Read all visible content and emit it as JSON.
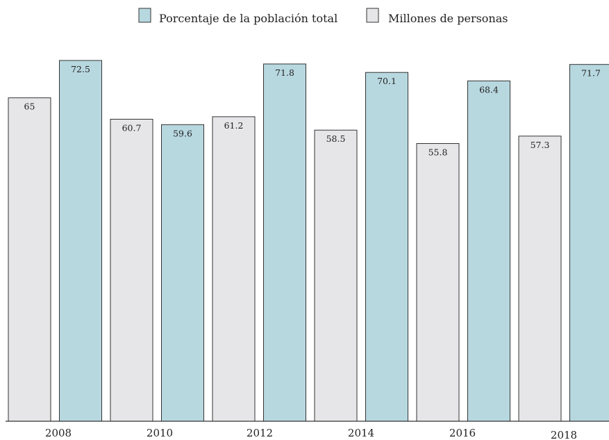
{
  "chart_data": {
    "type": "bar",
    "title": "",
    "xlabel": "",
    "ylabel": "",
    "ylim": [
      0,
      72.5
    ],
    "grid": false,
    "legend_position": "top-center",
    "x_ticks": [
      "2008",
      "2010",
      "2012",
      "2014",
      "2016",
      "2018"
    ],
    "series": [
      {
        "name": "Millones de personas",
        "color": "#e6e6e8",
        "values": [
          65,
          60.7,
          61.2,
          58.5,
          55.8,
          57.3
        ]
      },
      {
        "name": "Porcentaje de la población total",
        "color": "#b8d8e0",
        "values": [
          72.5,
          59.6,
          71.8,
          70.1,
          68.4,
          71.7
        ]
      }
    ],
    "legend_order": [
      1,
      0
    ]
  }
}
